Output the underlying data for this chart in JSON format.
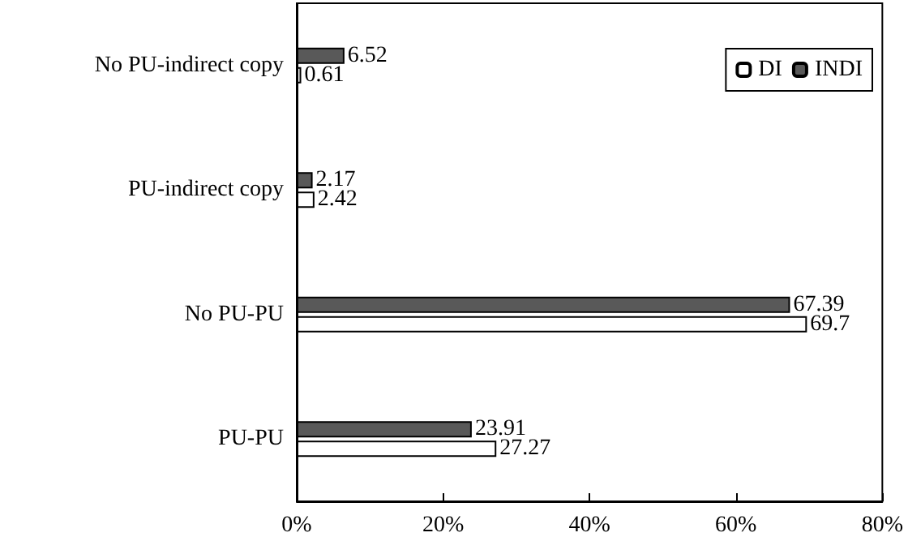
{
  "chart_data": {
    "type": "bar",
    "orientation": "horizontal",
    "categories": [
      "No PU-indirect copy",
      "PU-indirect copy",
      "No PU-PU",
      "PU-PU"
    ],
    "series": [
      {
        "name": "DI",
        "color": "#ffffff",
        "values": [
          0.61,
          2.42,
          69.7,
          27.27
        ]
      },
      {
        "name": "INDI",
        "color": "#595959",
        "values": [
          6.52,
          2.17,
          67.39,
          23.91
        ]
      }
    ],
    "xlim": [
      0,
      80
    ],
    "xticks": [
      {
        "value": 0,
        "label": "0%"
      },
      {
        "value": 20,
        "label": "20%"
      },
      {
        "value": 40,
        "label": "40%"
      },
      {
        "value": 60,
        "label": "60%"
      },
      {
        "value": 80,
        "label": "80%"
      }
    ],
    "data_labels": true,
    "legend": "top right",
    "grid": false
  }
}
